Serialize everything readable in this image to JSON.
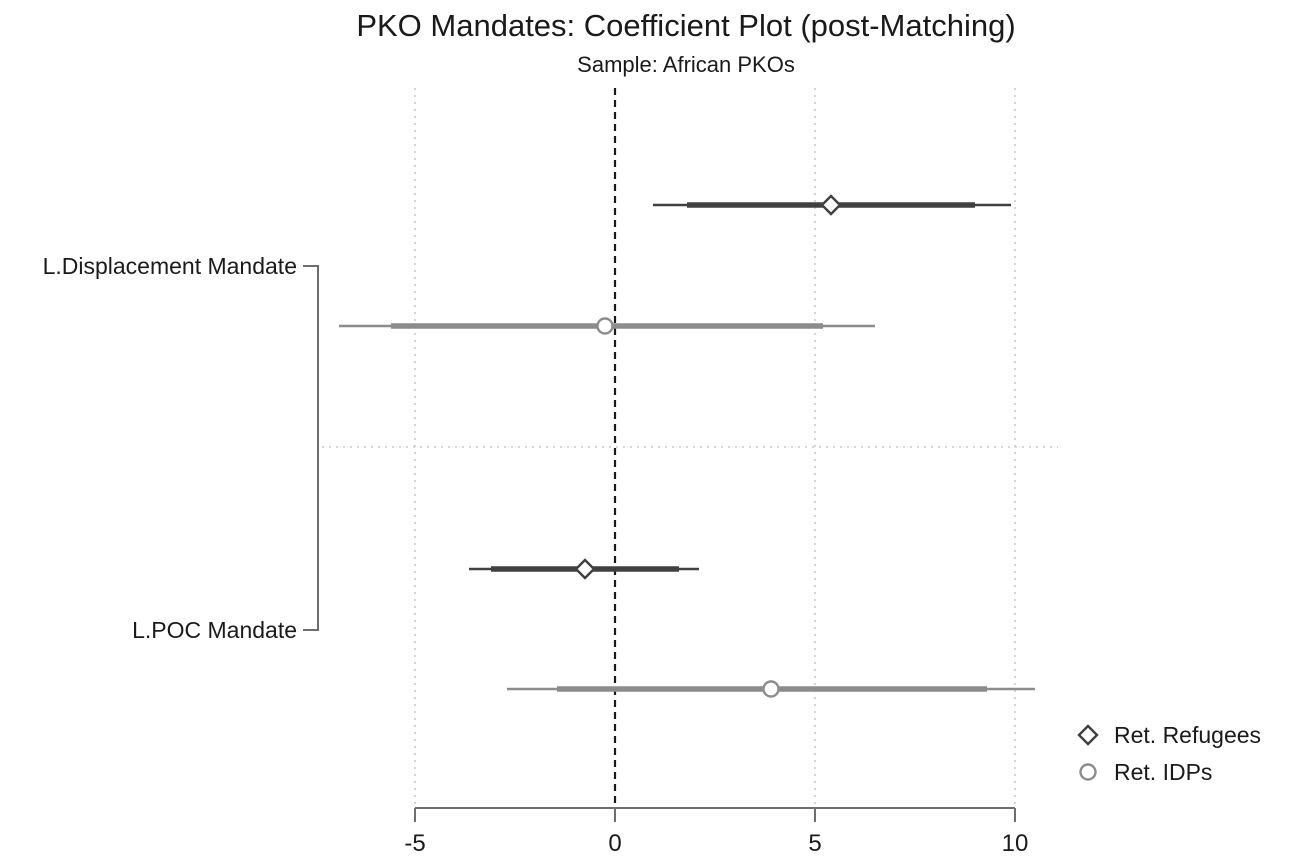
{
  "chart_data": {
    "type": "coefficient-plot",
    "title": "PKO Mandates: Coefficient Plot (post-Matching)",
    "subtitle": "Sample: African PKOs",
    "xlabel": "",
    "ylabel": "",
    "xlim": [
      -5,
      10
    ],
    "xticks": [
      "-5",
      "0",
      "5",
      "10"
    ],
    "xtick_values": [
      -5,
      0,
      5,
      10
    ],
    "reference_line": 0,
    "grid": "vertical dotted at ticks",
    "legend_position": "bottom-right",
    "groups": [
      "L.Displacement Mandate",
      "L.POC Mandate"
    ],
    "series": [
      {
        "name": "Ret. Refugees",
        "marker": "diamond",
        "color": "#404040",
        "points": [
          {
            "group": "L.Displacement Mandate",
            "estimate": 5.4,
            "ci90": [
              1.8,
              9.0
            ],
            "ci95": [
              0.95,
              9.9
            ]
          },
          {
            "group": "L.POC Mandate",
            "estimate": -0.75,
            "ci90": [
              -3.1,
              1.6
            ],
            "ci95": [
              -3.65,
              2.1
            ]
          }
        ]
      },
      {
        "name": "Ret. IDPs",
        "marker": "circle",
        "color": "#8c8c8c",
        "points": [
          {
            "group": "L.Displacement Mandate",
            "estimate": -0.25,
            "ci90": [
              -5.6,
              5.2
            ],
            "ci95": [
              -6.9,
              6.5
            ]
          },
          {
            "group": "L.POC Mandate",
            "estimate": 3.9,
            "ci90": [
              -1.45,
              9.3
            ],
            "ci95": [
              -2.7,
              10.5
            ]
          }
        ]
      }
    ]
  }
}
